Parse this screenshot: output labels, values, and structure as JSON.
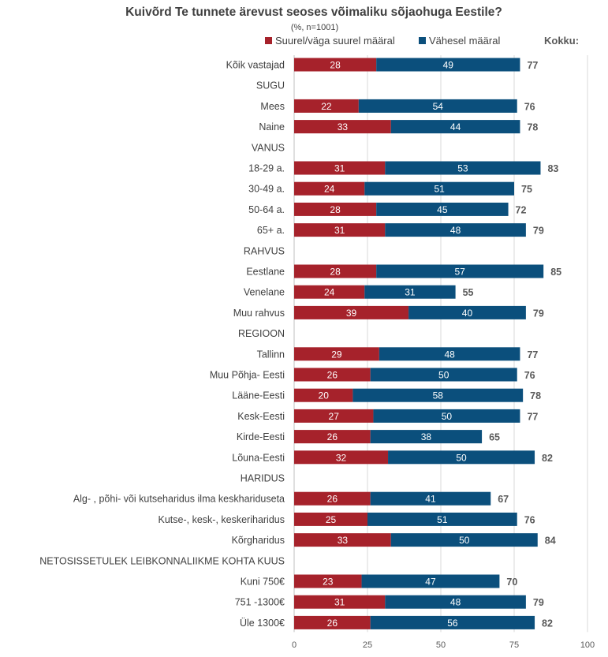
{
  "chart_data": {
    "type": "bar",
    "orientation": "horizontal",
    "stacked": true,
    "title": "Kuivõrd Te tunnete ärevust seoses võimaliku sõjaohuga Eestile?",
    "subtitle": "(%, n=1001)",
    "total_label": "Kokku:",
    "xlim": [
      0,
      100
    ],
    "x_ticks": [
      "0",
      "25",
      "50",
      "75",
      "100"
    ],
    "grid": "vertical",
    "legend_position": "top",
    "colors": {
      "series1": "#A6222B",
      "series2": "#0B4F7C",
      "grid": "#D9D9D9",
      "total_text": "#595959"
    },
    "series": [
      {
        "name": "Suurel/väga suurel määral"
      },
      {
        "name": "Vähesel määral"
      }
    ],
    "rows": [
      {
        "label": "Kõik vastajad",
        "values": [
          28,
          49
        ],
        "total": "77"
      },
      {
        "label": "SUGU",
        "heading": true
      },
      {
        "label": "Mees",
        "values": [
          22,
          54
        ],
        "total": "76"
      },
      {
        "label": "Naine",
        "values": [
          33,
          44
        ],
        "total": "78"
      },
      {
        "label": "VANUS",
        "heading": true
      },
      {
        "label": "18-29 a.",
        "values": [
          31,
          53
        ],
        "total": "83"
      },
      {
        "label": "30-49 a.",
        "values": [
          24,
          51
        ],
        "total": "75"
      },
      {
        "label": "50-64 a.",
        "values": [
          28,
          45
        ],
        "total": "72"
      },
      {
        "label": "65+ a.",
        "values": [
          31,
          48
        ],
        "total": "79"
      },
      {
        "label": "RAHVUS",
        "heading": true
      },
      {
        "label": "Eestlane",
        "values": [
          28,
          57
        ],
        "total": "85"
      },
      {
        "label": "Venelane",
        "values": [
          24,
          31
        ],
        "total": "55"
      },
      {
        "label": "Muu rahvus",
        "values": [
          39,
          40
        ],
        "total": "79"
      },
      {
        "label": "REGIOON",
        "heading": true
      },
      {
        "label": "Tallinn",
        "values": [
          29,
          48
        ],
        "total": "77"
      },
      {
        "label": "Muu Põhja- Eesti",
        "values": [
          26,
          50
        ],
        "total": "76"
      },
      {
        "label": "Lääne-Eesti",
        "values": [
          20,
          58
        ],
        "total": "78"
      },
      {
        "label": "Kesk-Eesti",
        "values": [
          27,
          50
        ],
        "total": "77"
      },
      {
        "label": "Kirde-Eesti",
        "values": [
          26,
          38
        ],
        "total": "65"
      },
      {
        "label": "Lõuna-Eesti",
        "values": [
          32,
          50
        ],
        "total": "82"
      },
      {
        "label": "HARIDUS",
        "heading": true
      },
      {
        "label": "Alg- , põhi- või kutseharidus ilma keskhariduseta",
        "values": [
          26,
          41
        ],
        "total": "67"
      },
      {
        "label": "Kutse-, kesk-, keskeriharidus",
        "values": [
          25,
          51
        ],
        "total": "76"
      },
      {
        "label": "Kõrgharidus",
        "values": [
          33,
          50
        ],
        "total": "84"
      },
      {
        "label": "NETOSISSETULEK LEIBKONNALIIKME KOHTA KUUS",
        "heading": true
      },
      {
        "label": "Kuni 750€",
        "values": [
          23,
          47
        ],
        "total": "70"
      },
      {
        "label": "751 -1300€",
        "values": [
          31,
          48
        ],
        "total": "79"
      },
      {
        "label": "Üle 1300€",
        "values": [
          26,
          56
        ],
        "total": "82"
      }
    ]
  }
}
